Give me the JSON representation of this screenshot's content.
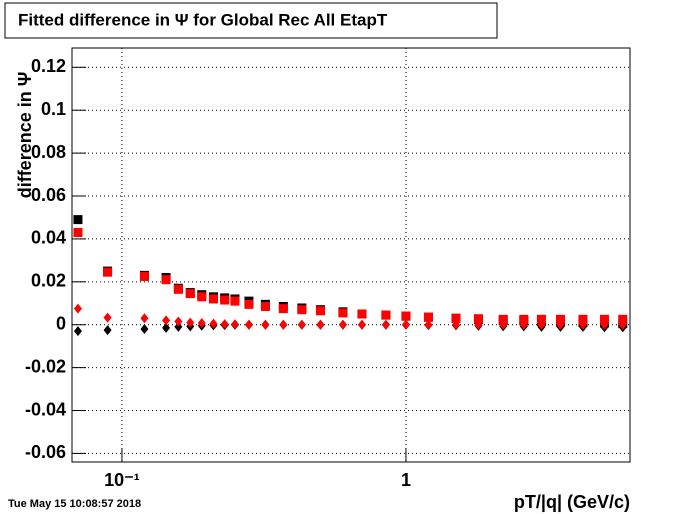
{
  "chart_data": {
    "type": "scatter",
    "title": "Fitted difference in Ψ for Global Rec All EtapT",
    "x_label": "pT/|q| (GeV/c)",
    "y_label": "difference in Ψ",
    "timestamp": "Tue May 15 10:08:57 2018",
    "log_x": true,
    "grid": true,
    "xlim": [
      0.0667,
      6.15
    ],
    "ylim": [
      -0.064,
      0.129
    ],
    "xticks": [
      {
        "value": 0.1,
        "label": "10⁻¹"
      },
      1
    ],
    "yticks": [
      -0.06,
      -0.04,
      -0.02,
      0,
      0.02,
      0.04,
      0.06,
      0.08,
      0.1,
      0.12
    ],
    "x": [
      0.07,
      0.089,
      0.12,
      0.143,
      0.158,
      0.174,
      0.191,
      0.21,
      0.23,
      0.25,
      0.28,
      0.32,
      0.37,
      0.43,
      0.5,
      0.6,
      0.7,
      0.85,
      1.0,
      1.2,
      1.5,
      1.8,
      2.2,
      2.6,
      3.0,
      3.5,
      4.2,
      5.0,
      5.8
    ],
    "series": [
      {
        "color": "#000000",
        "marker": "square",
        "values": [
          0.049,
          0.025,
          0.023,
          0.022,
          0.017,
          0.015,
          0.014,
          0.013,
          0.0125,
          0.012,
          0.011,
          0.0095,
          0.0085,
          0.0078,
          0.007,
          0.006,
          0.005,
          0.0045,
          0.004,
          0.0035,
          0.003,
          0.0025,
          0.002,
          0.0018,
          0.0015,
          0.0012,
          0.001,
          0.0008,
          0.0005
        ]
      },
      {
        "color": "#ff0000",
        "marker": "square",
        "values": [
          0.043,
          0.0245,
          0.0225,
          0.021,
          0.0165,
          0.0145,
          0.013,
          0.012,
          0.0115,
          0.011,
          0.0095,
          0.0085,
          0.0075,
          0.007,
          0.0065,
          0.0055,
          0.005,
          0.0045,
          0.004,
          0.0035,
          0.003,
          0.0028,
          0.0025,
          0.0025,
          0.0025,
          0.0025,
          0.0025,
          0.0025,
          0.0025
        ]
      },
      {
        "color": "#000000",
        "marker": "diamond",
        "values": [
          -0.003,
          -0.0025,
          -0.002,
          -0.0015,
          -0.001,
          -0.0008,
          -0.0005,
          -0.0003,
          -0.0002,
          -0.0001,
          0,
          0,
          0,
          0,
          0,
          0,
          0,
          0,
          0,
          -0.0002,
          -0.0003,
          -0.0005,
          -0.0007,
          -0.0008,
          -0.001,
          -0.001,
          -0.001,
          -0.0012,
          -0.0012
        ]
      },
      {
        "color": "#ff0000",
        "marker": "diamond",
        "values": [
          0.0075,
          0.0033,
          0.003,
          0.002,
          0.0015,
          0.001,
          0.0008,
          0.0005,
          0.0003,
          0.0002,
          0,
          0,
          0,
          0,
          0,
          0,
          0,
          0,
          0,
          0,
          0,
          0,
          0,
          0,
          0,
          0,
          0,
          0,
          0
        ]
      }
    ]
  }
}
